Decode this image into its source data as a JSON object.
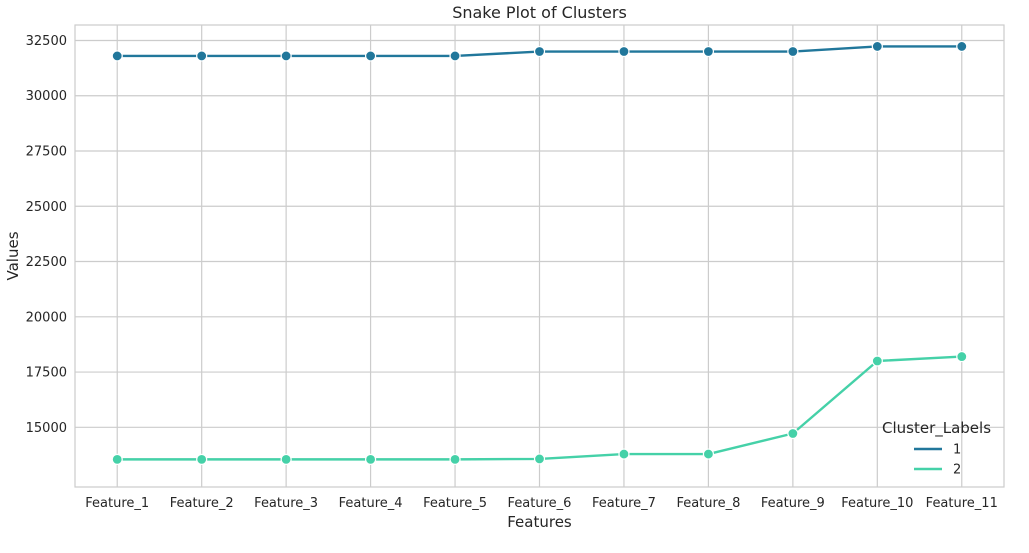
{
  "chart_data": {
    "type": "line",
    "title": "Snake Plot of Clusters",
    "xlabel": "Features",
    "ylabel": "Values",
    "categories": [
      "Feature_1",
      "Feature_2",
      "Feature_3",
      "Feature_4",
      "Feature_5",
      "Feature_6",
      "Feature_7",
      "Feature_8",
      "Feature_9",
      "Feature_10",
      "Feature_11"
    ],
    "ylim": [
      12300,
      33200
    ],
    "yticks": [
      15000,
      17500,
      20000,
      22500,
      25000,
      27500,
      30000,
      32500
    ],
    "grid": true,
    "legend": {
      "title": "Cluster_Labels",
      "placement": "bottom-right"
    },
    "series": [
      {
        "name": "1",
        "color": "#21779B",
        "values": [
          31800,
          31800,
          31800,
          31800,
          31800,
          32000,
          32000,
          32000,
          32000,
          32230,
          32230
        ]
      },
      {
        "name": "2",
        "color": "#45D1A8",
        "values": [
          13550,
          13550,
          13550,
          13550,
          13550,
          13570,
          13790,
          13790,
          14720,
          18000,
          18200
        ]
      }
    ]
  }
}
